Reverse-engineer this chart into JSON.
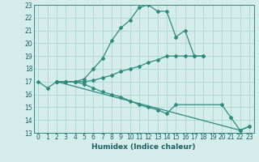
{
  "xlabel": "Humidex (Indice chaleur)",
  "background_color": "#d4edec",
  "line_color": "#2e8b7a",
  "grid_color": "#afd8d4",
  "xlim": [
    -0.5,
    23.5
  ],
  "ylim": [
    13,
    23
  ],
  "xticks": [
    0,
    1,
    2,
    3,
    4,
    5,
    6,
    7,
    8,
    9,
    10,
    11,
    12,
    13,
    14,
    15,
    16,
    17,
    18,
    19,
    20,
    21,
    22,
    23
  ],
  "yticks": [
    13,
    14,
    15,
    16,
    17,
    18,
    19,
    20,
    21,
    22,
    23
  ],
  "series": [
    {
      "x": [
        0,
        1,
        2,
        3,
        4,
        5,
        6,
        7,
        8,
        9,
        10,
        11,
        12,
        13,
        14,
        15,
        16,
        17,
        18
      ],
      "y": [
        17.0,
        16.5,
        17.0,
        17.0,
        17.0,
        17.2,
        18.0,
        18.8,
        20.2,
        21.2,
        21.8,
        22.8,
        23.0,
        22.5,
        22.5,
        20.5,
        21.0,
        19.0,
        19.0
      ]
    },
    {
      "x": [
        2,
        3,
        4,
        5,
        6,
        7,
        8,
        9,
        10,
        11,
        12,
        13,
        14,
        15,
        16,
        17,
        18
      ],
      "y": [
        17.0,
        17.0,
        17.0,
        17.0,
        17.1,
        17.3,
        17.5,
        17.8,
        18.0,
        18.2,
        18.5,
        18.7,
        19.0,
        19.0,
        19.0,
        19.0,
        19.0
      ]
    },
    {
      "x": [
        2,
        3,
        4,
        5,
        6,
        7,
        8,
        9,
        10,
        11,
        12,
        13,
        14,
        15,
        20,
        21,
        22,
        23
      ],
      "y": [
        17.0,
        17.0,
        17.0,
        16.8,
        16.5,
        16.2,
        16.0,
        15.8,
        15.5,
        15.2,
        15.0,
        14.8,
        14.5,
        15.2,
        15.2,
        14.2,
        13.2,
        13.5
      ]
    },
    {
      "x": [
        2,
        22,
        23
      ],
      "y": [
        17.0,
        13.2,
        13.5
      ]
    }
  ]
}
